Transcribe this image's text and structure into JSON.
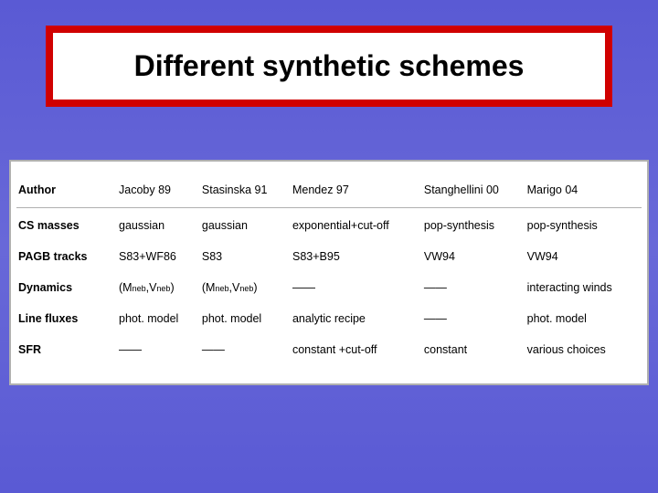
{
  "title": "Different synthetic schemes",
  "columns": {
    "author_label": "Author",
    "c1": "Jacoby 89",
    "c2": "Stasinska 91",
    "c3": "Mendez 97",
    "c4": "Stanghellini 00",
    "c5": "Marigo 04"
  },
  "rows": {
    "cs_masses": {
      "label": "CS masses",
      "c1": "gaussian",
      "c2": "gaussian",
      "c3": "exponential+cut-off",
      "c4": "pop-synthesis",
      "c5": "pop-synthesis"
    },
    "pagb_tracks": {
      "label": "PAGB tracks",
      "c1": "S83+WF86",
      "c2": "S83",
      "c3": "S83+B95",
      "c4": "VW94",
      "c5": "VW94"
    },
    "dynamics": {
      "label": "Dynamics",
      "c1_pre": "(M",
      "c1_sub1": "neb",
      "c1_mid": ",V",
      "c1_sub2": "neb",
      "c1_post": ")",
      "c2_pre": "(M",
      "c2_sub1": "neb",
      "c2_mid": ",V",
      "c2_sub2": "neb",
      "c2_post": ")",
      "c3": "——",
      "c4": "——",
      "c5": "interacting winds"
    },
    "line_fluxes": {
      "label": "Line fluxes",
      "c1": "phot. model",
      "c2": "phot. model",
      "c3": "analytic recipe",
      "c4": "——",
      "c5": "phot. model"
    },
    "sfr": {
      "label": "SFR",
      "c1": "——",
      "c2": "——",
      "c3": "constant +cut-off",
      "c4": "constant",
      "c5": "various choices"
    }
  },
  "style": {
    "slide_bg_start": "#5a5ad4",
    "slide_bg_end": "#5a5ad4",
    "title_border": "#d00000",
    "table_border": "#b0b0b0",
    "sfr_color": "#c00000"
  }
}
